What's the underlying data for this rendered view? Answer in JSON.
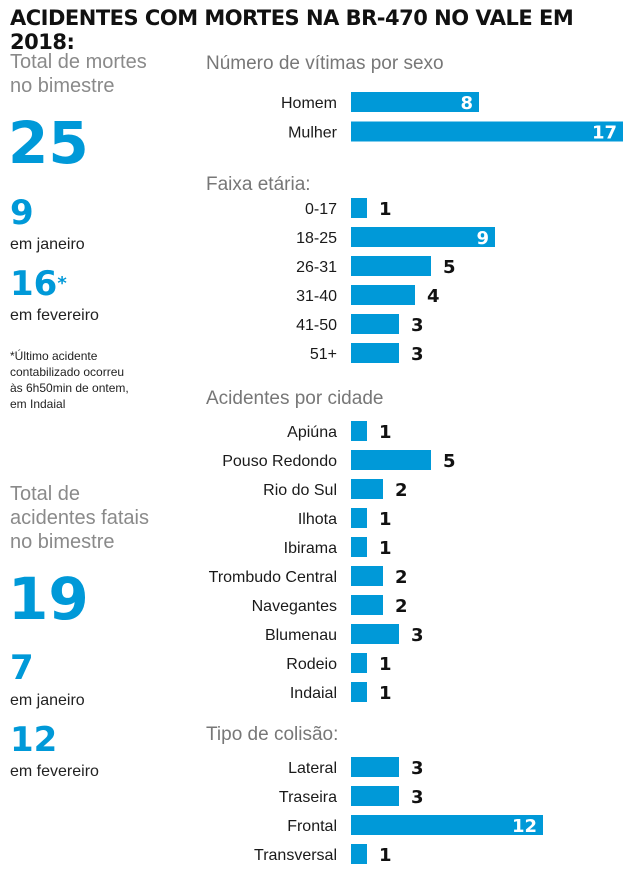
{
  "title": "ACIDENTES COM MORTES NA BR-470 NO VALE EM 2018:",
  "sidebar": {
    "deaths_label": [
      "Total de mortes",
      "no bimestre"
    ],
    "deaths_total": "25",
    "deaths_jan": "9",
    "jan_label": "em janeiro",
    "deaths_feb": "16",
    "deaths_feb_mark": "*",
    "feb_label": "em fevereiro",
    "footnote": [
      "*Último acidente",
      "contabilizado ocorreu",
      "às 6h50min de ontem,",
      "em Indaial"
    ],
    "accidents_label": [
      "Total de",
      "acidentes fatais",
      "no bimestre"
    ],
    "accidents_total": "19",
    "accidents_jan": "7",
    "accidents_jan_label": "em janeiro",
    "accidents_feb": "12",
    "accidents_feb_label": "em fevereiro"
  },
  "colors": {
    "accent": "#0099d8",
    "label": "#777777",
    "text": "#1a1a1a"
  },
  "chart_data": [
    {
      "type": "bar",
      "orientation": "horizontal",
      "title": "Número de vítimas por sexo",
      "categories": [
        "Homem",
        "Mulher"
      ],
      "values": [
        8,
        17
      ]
    },
    {
      "type": "bar",
      "orientation": "horizontal",
      "title": "Faixa etária:",
      "categories": [
        "0-17",
        "18-25",
        "26-31",
        "31-40",
        "41-50",
        "51+"
      ],
      "values": [
        1,
        9,
        5,
        4,
        3,
        3
      ]
    },
    {
      "type": "bar",
      "orientation": "horizontal",
      "title": "Acidentes por cidade",
      "categories": [
        "Apiúna",
        "Pouso Redondo",
        "Rio do Sul",
        "Ilhota",
        "Ibirama",
        "Trombudo Central",
        "Navegantes",
        "Blumenau",
        "Rodeio",
        "Indaial"
      ],
      "values": [
        1,
        5,
        2,
        1,
        1,
        2,
        2,
        3,
        1,
        1
      ]
    },
    {
      "type": "bar",
      "orientation": "horizontal",
      "title": "Tipo de colisão:",
      "categories": [
        "Lateral",
        "Traseira",
        "Frontal",
        "Transversal"
      ],
      "values": [
        3,
        3,
        12,
        1
      ]
    }
  ]
}
